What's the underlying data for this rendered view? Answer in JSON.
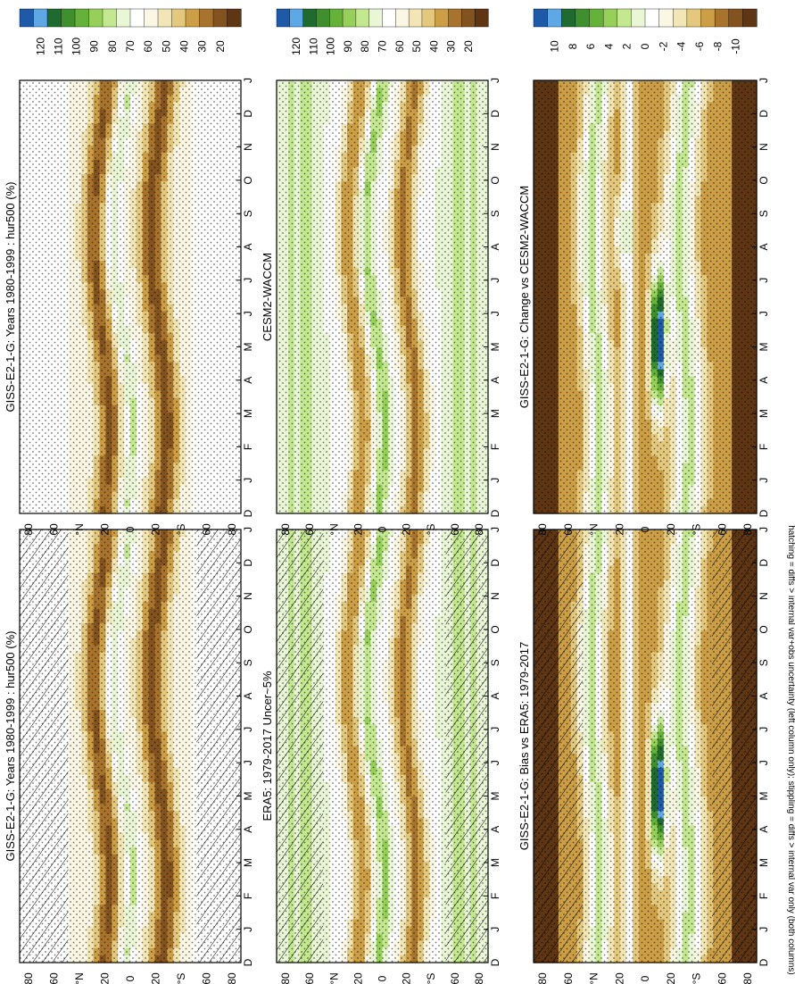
{
  "footnote": "hatching = diffs > internal var+obs uncertainty (left column only); stippling = diffs > internal var only (both columns)",
  "colors": {
    "abs": [
      "#1e5aa8",
      "#5fa8e6",
      "#1f6b2f",
      "#3f8f2e",
      "#66b13a",
      "#96d05a",
      "#c4e890",
      "#e9f7d6",
      "#ffffff",
      "#fbf7e4",
      "#f3e6b6",
      "#e3c87e",
      "#cc9f47",
      "#a8742d",
      "#82521f",
      "#5f3614"
    ],
    "diff": [
      "#1e5aa8",
      "#5fa8e6",
      "#1f6b2f",
      "#3f8f2e",
      "#66b13a",
      "#96d05a",
      "#c4e890",
      "#e9f7d6",
      "#ffffff",
      "#fbf7e4",
      "#f3e6b6",
      "#e3c87e",
      "#cc9f47",
      "#a8742d",
      "#82521f",
      "#5f3614"
    ]
  },
  "panels": [
    {
      "id": "model-left",
      "title": "GISS-E2-1-G: Years 1980-1999 : hur500 (%)",
      "kind": "abs",
      "hatching": true,
      "colorbar_labels": [
        "120",
        "110",
        "100",
        "90",
        "80",
        "70",
        "60",
        "50",
        "40",
        "30",
        "20"
      ],
      "chart_data": {
        "type": "heatmap",
        "x": [
          "D",
          "J",
          "F",
          "M",
          "A",
          "M",
          "J",
          "J",
          "A",
          "S",
          "O",
          "N",
          "D",
          "J"
        ],
        "y_ticks": [
          "80",
          "60",
          "°N",
          "20",
          "0",
          "20",
          "°S",
          "60",
          "80"
        ],
        "y_values": [
          80,
          60,
          40,
          20,
          0,
          -20,
          -40,
          -60,
          -80
        ],
        "value_range": [
          15,
          125
        ],
        "field": "hur500"
      }
    },
    {
      "id": "model-right",
      "title": "GISS-E2-1-G: Years 1980-1999 : hur500 (%)",
      "kind": "abs",
      "hatching": false,
      "colorbar_labels": [
        "120",
        "110",
        "100",
        "90",
        "80",
        "70",
        "60",
        "50",
        "40",
        "30",
        "20"
      ],
      "chart_data": {
        "type": "heatmap",
        "x": [
          "D",
          "J",
          "F",
          "M",
          "A",
          "M",
          "J",
          "J",
          "A",
          "S",
          "O",
          "N",
          "D",
          "J"
        ],
        "y_ticks": [
          "80",
          "60",
          "°N",
          "20",
          "0",
          "20",
          "°S",
          "60",
          "80"
        ],
        "y_values": [
          80,
          60,
          40,
          20,
          0,
          -20,
          -40,
          -60,
          -80
        ],
        "value_range": [
          15,
          125
        ],
        "field": "hur500"
      }
    },
    {
      "id": "obs-left",
      "title": "ERA5: 1979-2017 Uncer~5%",
      "kind": "abs",
      "hatching": true,
      "colorbar_labels": [
        "120",
        "110",
        "100",
        "90",
        "80",
        "70",
        "60",
        "50",
        "40",
        "30",
        "20"
      ],
      "chart_data": {
        "type": "heatmap",
        "x": [
          "D",
          "J",
          "F",
          "M",
          "A",
          "M",
          "J",
          "J",
          "A",
          "S",
          "O",
          "N",
          "D",
          "J"
        ],
        "y_ticks": [
          "80",
          "60",
          "°N",
          "20",
          "0",
          "20",
          "°S",
          "60",
          "80"
        ],
        "y_values": [
          80,
          60,
          40,
          20,
          0,
          -20,
          -40,
          -60,
          -80
        ],
        "value_range": [
          15,
          125
        ],
        "field": "hur500"
      }
    },
    {
      "id": "obs-right",
      "title": "CESM2-WACCM",
      "kind": "abs",
      "hatching": false,
      "colorbar_labels": [
        "120",
        "110",
        "100",
        "90",
        "80",
        "70",
        "60",
        "50",
        "40",
        "30",
        "20"
      ],
      "chart_data": {
        "type": "heatmap",
        "x": [
          "D",
          "J",
          "F",
          "M",
          "A",
          "M",
          "J",
          "J",
          "A",
          "S",
          "O",
          "N",
          "D",
          "J"
        ],
        "y_ticks": [
          "80",
          "60",
          "°N",
          "20",
          "0",
          "20",
          "°S",
          "60",
          "80"
        ],
        "y_values": [
          80,
          60,
          40,
          20,
          0,
          -20,
          -40,
          -60,
          -80
        ],
        "value_range": [
          15,
          125
        ],
        "field": "hur500"
      }
    },
    {
      "id": "diff-left",
      "title": "GISS-E2-1-G: Bias vs ERA5: 1979-2017",
      "kind": "diff",
      "hatching": true,
      "colorbar_labels": [
        "10",
        "8",
        "6",
        "4",
        "2",
        "0",
        "-2",
        "-4",
        "-6",
        "-8",
        "-10"
      ],
      "chart_data": {
        "type": "heatmap",
        "x": [
          "D",
          "J",
          "F",
          "M",
          "A",
          "M",
          "J",
          "J",
          "A",
          "S",
          "O",
          "N",
          "D",
          "J"
        ],
        "y_ticks": [
          "80",
          "60",
          "°N",
          "20",
          "0",
          "20",
          "°S",
          "60",
          "80"
        ],
        "y_values": [
          80,
          60,
          40,
          20,
          0,
          -20,
          -40,
          -60,
          -80
        ],
        "value_range": [
          -12,
          12
        ],
        "field": "hur500 difference"
      }
    },
    {
      "id": "diff-right",
      "title": "GISS-E2-1-G: Change vs CESM2-WACCM",
      "kind": "diff",
      "hatching": false,
      "colorbar_labels": [
        "10",
        "8",
        "6",
        "4",
        "2",
        "0",
        "-2",
        "-4",
        "-6",
        "-8",
        "-10"
      ],
      "chart_data": {
        "type": "heatmap",
        "x": [
          "D",
          "J",
          "F",
          "M",
          "A",
          "M",
          "J",
          "J",
          "A",
          "S",
          "O",
          "N",
          "D",
          "J"
        ],
        "y_ticks": [
          "80",
          "60",
          "°N",
          "20",
          "0",
          "20",
          "°S",
          "60",
          "80"
        ],
        "y_values": [
          80,
          60,
          40,
          20,
          0,
          -20,
          -40,
          -60,
          -80
        ],
        "value_range": [
          -12,
          12
        ],
        "field": "hur500 difference"
      }
    }
  ]
}
